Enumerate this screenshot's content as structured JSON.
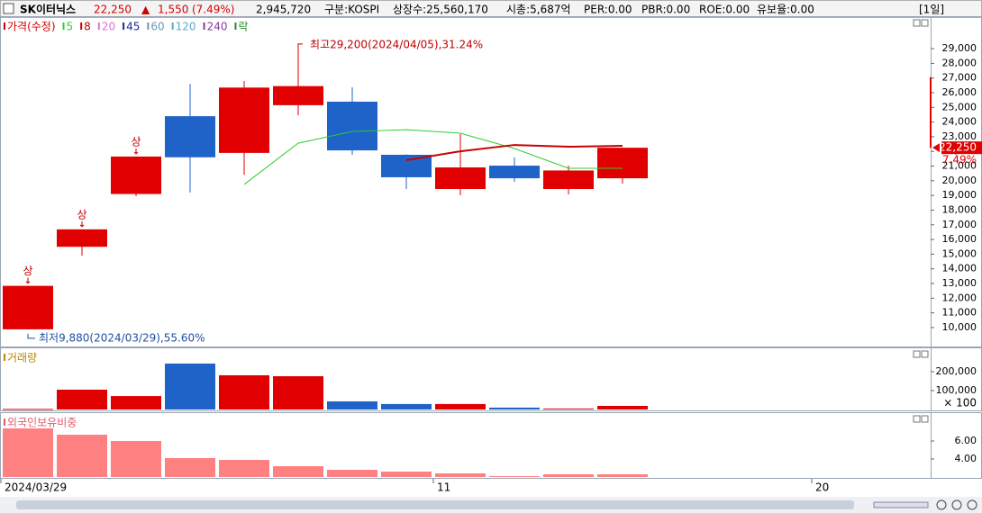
{
  "header": {
    "name": "SK이터닉스",
    "price": "22,250",
    "arrow": "▲",
    "change": "1,550",
    "change_pct": "(7.49%)",
    "volume": "2,945,720",
    "market": "구분:KOSPI",
    "shares": "상장수:25,560,170",
    "market_cap": "시총:5,687억",
    "per": "PER:0.00",
    "pbr": "PBR:0.00",
    "roe": "ROE:0.00",
    "reserve": "유보율:0.00",
    "period": "[1일]"
  },
  "chart_data": [
    {
      "type": "candlestick",
      "title": "가격(수정)",
      "color": "#d40000",
      "categories": [
        "2024/03/29",
        null,
        null,
        null,
        null,
        null,
        null,
        null,
        "11",
        null,
        null,
        null,
        null,
        null,
        null,
        "20"
      ],
      "open": [
        9880,
        15500,
        19100,
        24400,
        21900,
        25150,
        25390,
        21770,
        19440,
        21030,
        19440,
        20170,
        null,
        null,
        null,
        null
      ],
      "high": [
        12840,
        16690,
        21650,
        26600,
        26800,
        29200,
        26370,
        21800,
        23180,
        21590,
        21030,
        22250,
        null,
        null,
        null,
        null
      ],
      "low": [
        9880,
        14900,
        18950,
        19200,
        20400,
        24450,
        21770,
        19440,
        19010,
        19930,
        19070,
        19800,
        null,
        null,
        null,
        null
      ],
      "close": [
        12840,
        16690,
        21650,
        21600,
        26350,
        26450,
        22070,
        20240,
        20910,
        20170,
        20700,
        22250,
        null,
        null,
        null,
        null
      ],
      "up_color": "#e00000",
      "down_color": "#1f63c8",
      "limit_labels": [
        "상",
        "상",
        "상",
        null,
        null,
        null,
        null,
        null,
        null,
        null,
        null,
        null,
        null,
        null,
        null,
        null
      ],
      "series": [
        {
          "name": "5",
          "color": "#2ecc2e",
          "values": [
            null,
            null,
            null,
            null,
            19750,
            22560,
            23360,
            23480,
            23240,
            22200,
            20850,
            20850,
            null,
            null,
            null,
            null
          ]
        },
        {
          "name": "8",
          "color": "#c80000",
          "values": [
            null,
            null,
            null,
            null,
            null,
            null,
            null,
            21400,
            22010,
            22440,
            22320,
            22380,
            null,
            null,
            null,
            null
          ]
        },
        {
          "name": "20",
          "color": "#e070d8"
        },
        {
          "name": "45",
          "color": "#1a2a9a"
        },
        {
          "name": "60",
          "color": "#6a9ab0"
        },
        {
          "name": "120",
          "color": "#60a8c8"
        },
        {
          "name": "240",
          "color": "#8a3aa0"
        },
        {
          "name": "락",
          "color": "#2a8a2a"
        }
      ],
      "annotations": {
        "high": "최고29,200(2024/04/05),31.24%",
        "low": "최저9,880(2024/03/29),55.60%"
      },
      "last_price_label": "22,250",
      "last_change_label": "7.49%",
      "ylim": [
        8770,
        31090
      ],
      "yticks": [
        {
          "value": 10000,
          "label": "10,000"
        },
        {
          "value": 11000,
          "label": "11,000"
        },
        {
          "value": 12000,
          "label": "12,000"
        },
        {
          "value": 13000,
          "label": "13,000"
        },
        {
          "value": 14000,
          "label": "14,000"
        },
        {
          "value": 15000,
          "label": "15,000"
        },
        {
          "value": 16000,
          "label": "16,000"
        },
        {
          "value": 17000,
          "label": "17,000"
        },
        {
          "value": 18000,
          "label": "18,000"
        },
        {
          "value": 19000,
          "label": "19,000"
        },
        {
          "value": 20000,
          "label": "20,000"
        },
        {
          "value": 21000,
          "label": "21,000"
        },
        {
          "value": 22000,
          "label": "22,000"
        },
        {
          "value": 23000,
          "label": "23,000"
        },
        {
          "value": 24000,
          "label": "24,000"
        },
        {
          "value": 25000,
          "label": "25,000"
        },
        {
          "value": 26000,
          "label": "26,000"
        },
        {
          "value": 27000,
          "label": "27,000"
        },
        {
          "value": 28000,
          "label": "28,000"
        },
        {
          "value": 29000,
          "label": "29,000"
        }
      ]
    },
    {
      "type": "bar",
      "title": "거래량",
      "title_color": "#b8860b",
      "unit_label": "× 100",
      "values": [
        3000,
        105000,
        71000,
        243000,
        181000,
        176000,
        43000,
        29000,
        29000,
        10000,
        5000,
        19000,
        null,
        null,
        null,
        null
      ],
      "colors": [
        "#e00000",
        "#e00000",
        "#e00000",
        "#1f63c8",
        "#e00000",
        "#e00000",
        "#1f63c8",
        "#1f63c8",
        "#e00000",
        "#1f63c8",
        "#e00000",
        "#e00000",
        null,
        null,
        null,
        null
      ],
      "ylim": [
        0,
        319000
      ],
      "yticks": [
        {
          "value": 100000,
          "label": "100,000"
        },
        {
          "value": 200000,
          "label": "200,000"
        }
      ]
    },
    {
      "type": "bar",
      "title": "외국인보유비중",
      "title_color": "#e05a6a",
      "values": [
        7.4,
        6.7,
        6.0,
        4.1,
        3.9,
        3.2,
        2.8,
        2.6,
        2.4,
        2.1,
        2.3,
        2.3,
        null,
        null,
        null,
        null
      ],
      "color": "#ff8080",
      "ylim": [
        2,
        9
      ],
      "yticks": [
        {
          "value": 4,
          "label": "4.00"
        },
        {
          "value": 6,
          "label": "6.00"
        }
      ]
    }
  ]
}
